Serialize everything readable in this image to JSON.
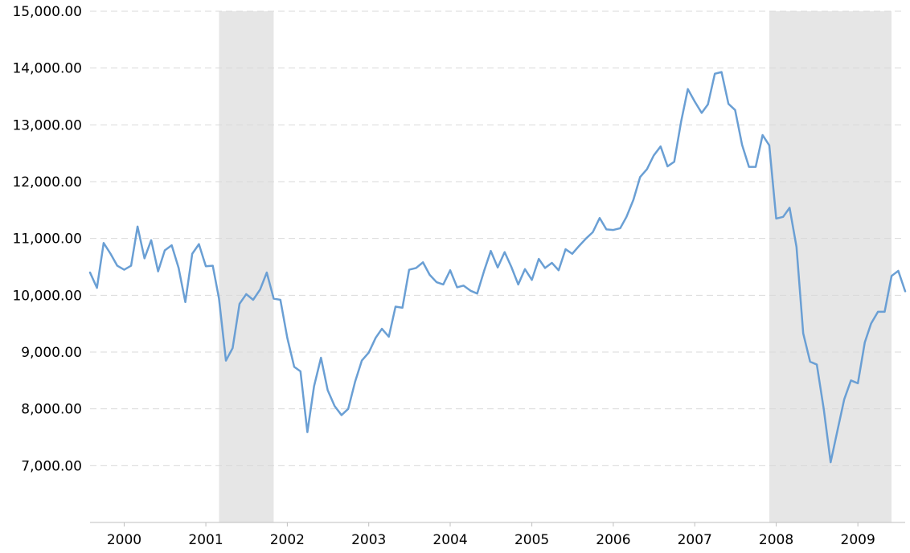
{
  "chart_data": {
    "type": "line",
    "title": "",
    "xlabel": "",
    "ylabel": "",
    "xlim": [
      "1999-08-01",
      "2009-08-01"
    ],
    "ylim": [
      6000,
      15000
    ],
    "y_ticks": [
      7000,
      8000,
      9000,
      10000,
      11000,
      12000,
      13000,
      14000,
      15000
    ],
    "y_tick_labels": [
      "7,000.00",
      "8,000.00",
      "9,000.00",
      "10,000.00",
      "11,000.00",
      "12,000.00",
      "13,000.00",
      "14,000.00",
      "15,000.00"
    ],
    "x_tick_dates": [
      "2000-01-01",
      "2001-01-01",
      "2002-01-01",
      "2003-01-01",
      "2004-01-01",
      "2005-01-01",
      "2006-01-01",
      "2007-01-01",
      "2008-01-01",
      "2009-01-01"
    ],
    "x_tick_labels": [
      "2000",
      "2001",
      "2002",
      "2003",
      "2004",
      "2005",
      "2006",
      "2007",
      "2008",
      "2009"
    ],
    "grid": true,
    "legend": "none",
    "colors": {
      "line": "#6a9fd4",
      "recession": "#e6e6e6",
      "grid": "#d9d9d9"
    },
    "recessions": [
      {
        "start": "2001-03-01",
        "end": "2001-11-01"
      },
      {
        "start": "2007-12-01",
        "end": "2009-06-01"
      }
    ],
    "series": [
      {
        "start": "1999-08-01",
        "frequency": "monthly",
        "values": [
          10400,
          10130,
          10920,
          10730,
          10520,
          10450,
          10520,
          11210,
          10650,
          10970,
          10420,
          10790,
          10880,
          10480,
          9880,
          10730,
          10900,
          10510,
          10520,
          9940,
          8850,
          9070,
          9850,
          10020,
          9920,
          10100,
          10400,
          9940,
          9920,
          9250,
          8740,
          8660,
          7590,
          8400,
          8900,
          8330,
          8050,
          7890,
          8000,
          8480,
          8850,
          8990,
          9250,
          9410,
          9270,
          9800,
          9780,
          10450,
          10480,
          10580,
          10360,
          10230,
          10190,
          10440,
          10140,
          10170,
          10080,
          10030,
          10430,
          10780,
          10490,
          10760,
          10500,
          10190,
          10460,
          10270,
          10640,
          10480,
          10570,
          10440,
          10810,
          10730,
          10870,
          11000,
          11110,
          11360,
          11160,
          11150,
          11180,
          11380,
          11680,
          12080,
          12220,
          12460,
          12620,
          12270,
          12350,
          13060,
          13630,
          13410,
          13210,
          13360,
          13900,
          13930,
          13370,
          13260,
          12650,
          12260,
          12260,
          12820,
          12640,
          11350,
          11380,
          11540,
          10850,
          9330,
          8830,
          8780,
          8000,
          7060,
          7610,
          8170,
          8500,
          8450,
          9170,
          9500,
          9710,
          9710,
          10340,
          10430,
          10070
        ]
      }
    ]
  }
}
